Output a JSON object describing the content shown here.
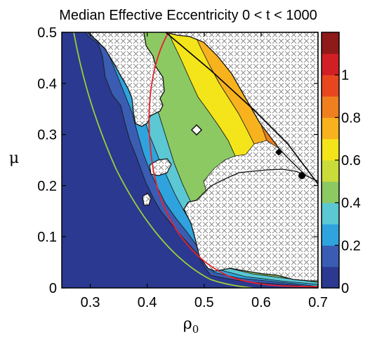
{
  "chart_data": {
    "type": "heatmap",
    "title": "Median Effective Eccentricity 0 < t < 1000",
    "xlabel": "ρ",
    "xlabel_sub": "0",
    "ylabel": "μ",
    "xlim": [
      0.25,
      0.7
    ],
    "ylim": [
      0,
      0.5
    ],
    "xticks": [
      0.3,
      0.4,
      0.5,
      0.6,
      0.7
    ],
    "xtick_labels": [
      "0.3",
      "0.4",
      "0.5",
      "0.6",
      "0.7"
    ],
    "yticks": [
      0,
      0.1,
      0.2,
      0.3,
      0.4,
      0.5
    ],
    "ytick_labels": [
      "0",
      "0.1",
      "0.2",
      "0.3",
      "0.4",
      "0.5"
    ],
    "colorbar": {
      "range": [
        0,
        1.2
      ],
      "ticks": [
        0,
        0.2,
        0.4,
        0.6,
        0.8,
        1
      ],
      "tick_labels": [
        "0",
        "0.2",
        "0.4",
        "0.6",
        "0.8",
        "1"
      ],
      "colors": [
        "#2b3990",
        "#3a5db3",
        "#2fa3dd",
        "#5bc8d3",
        "#8cc963",
        "#c9dc3a",
        "#f4e41a",
        "#f7b21e",
        "#f0801f",
        "#e8461f",
        "#d21f26",
        "#8f1a1a"
      ]
    },
    "contour_levels": [
      0.1,
      0.2,
      0.3,
      0.4,
      0.5,
      0.6,
      0.7,
      0.8,
      0.9,
      1.0,
      1.1
    ],
    "overlays": [
      {
        "kind": "curve",
        "color": "#e8212b"
      },
      {
        "kind": "curve",
        "color": "#9ecb3a"
      },
      {
        "kind": "line",
        "color": "#000000"
      }
    ],
    "masked_region_pattern": "crosshatch",
    "grid": false
  }
}
